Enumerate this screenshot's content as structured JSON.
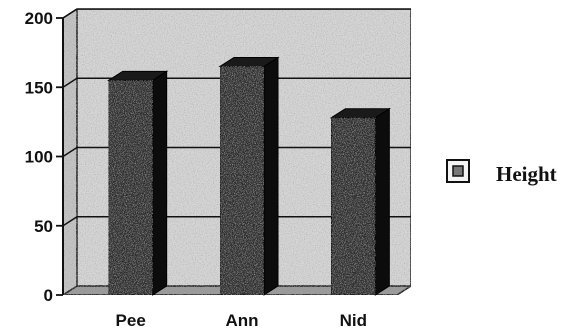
{
  "chart_data": {
    "type": "bar",
    "title": "",
    "xlabel": "",
    "ylabel": "",
    "categories": [
      "Pee",
      "Ann",
      "Nid"
    ],
    "series": [
      {
        "name": "Height",
        "values": [
          155,
          165,
          128
        ]
      }
    ],
    "ylim": [
      0,
      200
    ],
    "yticks": [
      "0",
      "50",
      "100",
      "150",
      "200"
    ],
    "grid": true,
    "legend": "right",
    "colors": {
      "bar_front": "#2e2e2e",
      "bar_side": "#0c0c0c",
      "bar_top": "#1a1a1a",
      "wall": "#d6d6d6",
      "floor": "#9a9a9a"
    }
  }
}
